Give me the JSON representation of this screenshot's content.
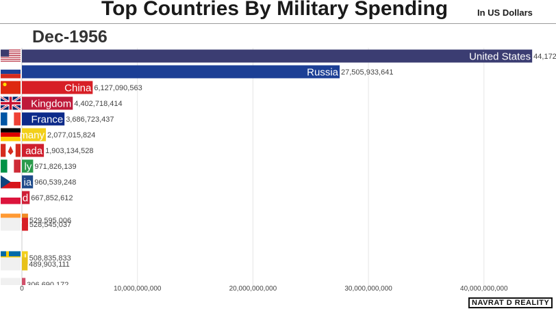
{
  "header": {
    "title": "Top Countries By Military Spending",
    "units": "In US Dollars",
    "date": "Dec-1956"
  },
  "watermark": "NAVRAT D REALITY",
  "chart_data": {
    "type": "bar",
    "orientation": "horizontal",
    "title": "Top Countries By Military Spending",
    "subtitle": "In US Dollars",
    "period": "Dec-1956",
    "xlim": [
      0,
      46000000000
    ],
    "xticks": [
      0,
      10000000000,
      20000000000,
      30000000000,
      40000000000
    ],
    "xtick_labels": [
      "0",
      "10,000,000,000",
      "20,000,000,000",
      "30,000,000,000",
      "40,000,000,000"
    ],
    "grid": true,
    "bars": [
      {
        "label": "United States",
        "value": 44172553319,
        "value_label": "44,172,553,319",
        "color": "#3b3d72",
        "flag": "us-flag-icon"
      },
      {
        "label": "Russia",
        "value": 27505933641,
        "value_label": "27,505,933,641",
        "color": "#1c3f95",
        "flag": "russia-flag-icon"
      },
      {
        "label": "China",
        "value": 6127090563,
        "value_label": "6,127,090,563",
        "color": "#d71f26",
        "flag": "china-flag-icon"
      },
      {
        "label": "Kingdom",
        "value": 4402718414,
        "value_label": "4,402,718,414",
        "color": "#bf1a3a",
        "flag": "uk-flag-icon"
      },
      {
        "label": "France",
        "value": 3686723437,
        "value_label": "3,686,723,437",
        "color": "#0c2a8a",
        "flag": "france-flag-icon"
      },
      {
        "label": "many",
        "value": 2077015824,
        "value_label": "2,077,015,824",
        "color": "#f2cf1a",
        "flag": "germany-flag-icon"
      },
      {
        "label": "ada",
        "value": 1903134528,
        "value_label": "1,903,134,528",
        "color": "#cf1f2d",
        "flag": "canada-flag-icon"
      },
      {
        "label": "ly",
        "value": 971826139,
        "value_label": "971,826,139",
        "color": "#2a9a4a",
        "flag": "italy-flag-icon"
      },
      {
        "label": "ia",
        "value": 960539248,
        "value_label": "960,539,248",
        "color": "#1e4a8a",
        "flag": "czechoslovakia-flag-icon"
      },
      {
        "label": "d",
        "value": 667852612,
        "value_label": "667,852,612",
        "color": "#cf1f36",
        "flag": "poland-flag-icon"
      },
      {
        "label": "a",
        "value": 529595006,
        "value_label": "529,595,006",
        "color": "#f08a24",
        "flag": "india-flag-icon"
      },
      {
        "label": "",
        "value": 528545037,
        "value_label": "528,545,037",
        "color": "#d71f26",
        "flag": "blank-flag-icon"
      },
      {
        "label": "l",
        "value": 508835833,
        "value_label": "508,835,833",
        "color": "#f2cf1a",
        "flag": "sweden-flag-icon"
      },
      {
        "label": "",
        "value": 489903111,
        "value_label": "489,903,111",
        "color": "#e8c21a",
        "flag": "blank-flag-icon"
      },
      {
        "label": "",
        "value": 306690172,
        "value_label": "306,690,172",
        "color": "#d0506a",
        "flag": "blank-flag-icon"
      }
    ]
  }
}
